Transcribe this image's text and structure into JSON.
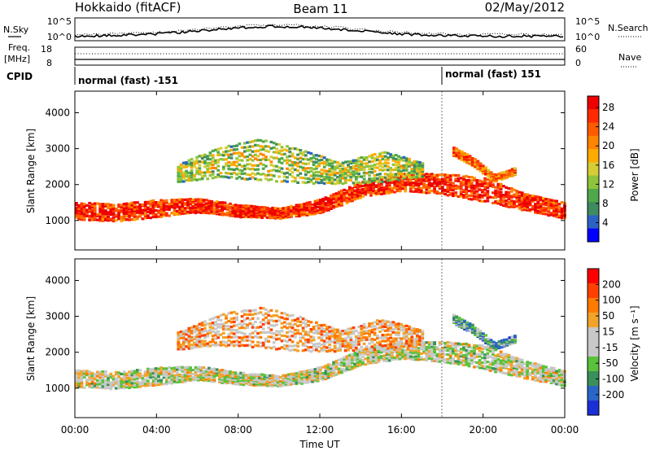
{
  "header": {
    "station": "Hokkaido (fitACF)",
    "beam": "Beam 11",
    "date": "02/May/2012"
  },
  "top_panels": {
    "nsky_label": "N.Sky",
    "nsearch_label": "N.Search",
    "freq_label_1": "Freq.",
    "freq_label_2": "[MHz]",
    "nave_label": "Nave",
    "cpid_label": "CPID",
    "noise_ticks_left": [
      "10^5",
      "10^0"
    ],
    "noise_ticks_right": [
      "10^5",
      "10^0"
    ],
    "freq_ticks": [
      "18",
      "8"
    ],
    "nave_ticks": [
      "60",
      "0"
    ],
    "cpid_segments": [
      {
        "label": "normal (fast) -151",
        "start_hour": 0,
        "end_hour": 18
      },
      {
        "label": "normal (fast) 151",
        "start_hour": 18,
        "end_hour": 24
      }
    ]
  },
  "chart_data": [
    {
      "type": "heatmap",
      "name": "power",
      "xlabel": "Time UT",
      "ylabel": "Slant Range [km]",
      "xlim": [
        0,
        24
      ],
      "ylim": [
        180,
        4600
      ],
      "x_ticks": [
        "00:00",
        "04:00",
        "08:00",
        "12:00",
        "16:00",
        "20:00",
        "00:00"
      ],
      "y_ticks": [
        1000,
        2000,
        3000,
        4000
      ],
      "colorbar": {
        "label": "Power [dB]",
        "ticks": [
          "4",
          "8",
          "12",
          "16",
          "20",
          "24",
          "28"
        ],
        "colors": [
          "#0000ff",
          "#2b63c5",
          "#3f8a5f",
          "#4fa84a",
          "#8ec43c",
          "#d6cc33",
          "#ffaa00",
          "#ff8400",
          "#ff5a00",
          "#ff2a00",
          "#ee0000"
        ]
      },
      "echo_bands": [
        {
          "hours": [
            0,
            2,
            4,
            6,
            8,
            10,
            12,
            14,
            16,
            18,
            20,
            22,
            24
          ],
          "center_km": [
            1250,
            1200,
            1320,
            1400,
            1250,
            1180,
            1380,
            1850,
            2050,
            2000,
            1850,
            1500,
            1250
          ],
          "width_km": [
            500,
            500,
            500,
            400,
            350,
            300,
            400,
            450,
            500,
            600,
            700,
            500,
            450
          ],
          "level": 0.8
        },
        {
          "hours": [
            5,
            7,
            9,
            11,
            13,
            15,
            17
          ],
          "center_km": [
            2300,
            2600,
            2700,
            2500,
            2300,
            2500,
            2400
          ],
          "width_km": [
            500,
            900,
            1200,
            1000,
            600,
            900,
            400
          ],
          "level": 0.35
        },
        {
          "hours": [
            18.5,
            19.5,
            20.5,
            21.5
          ],
          "center_km": [
            2900,
            2600,
            2150,
            2350
          ],
          "width_km": [
            250,
            250,
            200,
            200
          ],
          "level": 0.65
        }
      ]
    },
    {
      "type": "heatmap",
      "name": "velocity",
      "xlabel": "Time UT",
      "ylabel": "Slant Range [km]",
      "xlim": [
        0,
        24
      ],
      "ylim": [
        180,
        4600
      ],
      "x_ticks": [
        "00:00",
        "04:00",
        "08:00",
        "12:00",
        "16:00",
        "20:00",
        "00:00"
      ],
      "y_ticks": [
        1000,
        2000,
        3000,
        4000
      ],
      "colorbar": {
        "label": "Velocity [m s⁻¹]",
        "ticks": [
          "200",
          "100",
          "50",
          "15",
          "-15",
          "-50",
          "-100",
          "-200"
        ],
        "colors": [
          "#1a2fd6",
          "#2a66c8",
          "#3b8f5a",
          "#59c23a",
          "#c8c8c8",
          "#c8c8c8",
          "#f2a32a",
          "#ff7a00",
          "#ff4000",
          "#ff0000"
        ]
      },
      "echo_bands": [
        {
          "hours": [
            0,
            2,
            4,
            6,
            8,
            10,
            12,
            14,
            16,
            18,
            20,
            22,
            24
          ],
          "center_km": [
            1250,
            1200,
            1320,
            1400,
            1250,
            1180,
            1380,
            1850,
            2050,
            2000,
            1850,
            1500,
            1250
          ],
          "width_km": [
            500,
            500,
            500,
            400,
            350,
            300,
            400,
            450,
            500,
            600,
            700,
            500,
            450
          ],
          "level": 0.5
        },
        {
          "hours": [
            5,
            7,
            9,
            11,
            13,
            15,
            17
          ],
          "center_km": [
            2300,
            2600,
            2700,
            2500,
            2300,
            2500,
            2400
          ],
          "width_km": [
            500,
            900,
            1200,
            1000,
            600,
            900,
            400
          ],
          "level": 0.65
        },
        {
          "hours": [
            18.5,
            19.5,
            20.5,
            21.5
          ],
          "center_km": [
            2900,
            2600,
            2150,
            2350
          ],
          "width_km": [
            250,
            250,
            200,
            200
          ],
          "level": 0.3
        }
      ]
    }
  ]
}
